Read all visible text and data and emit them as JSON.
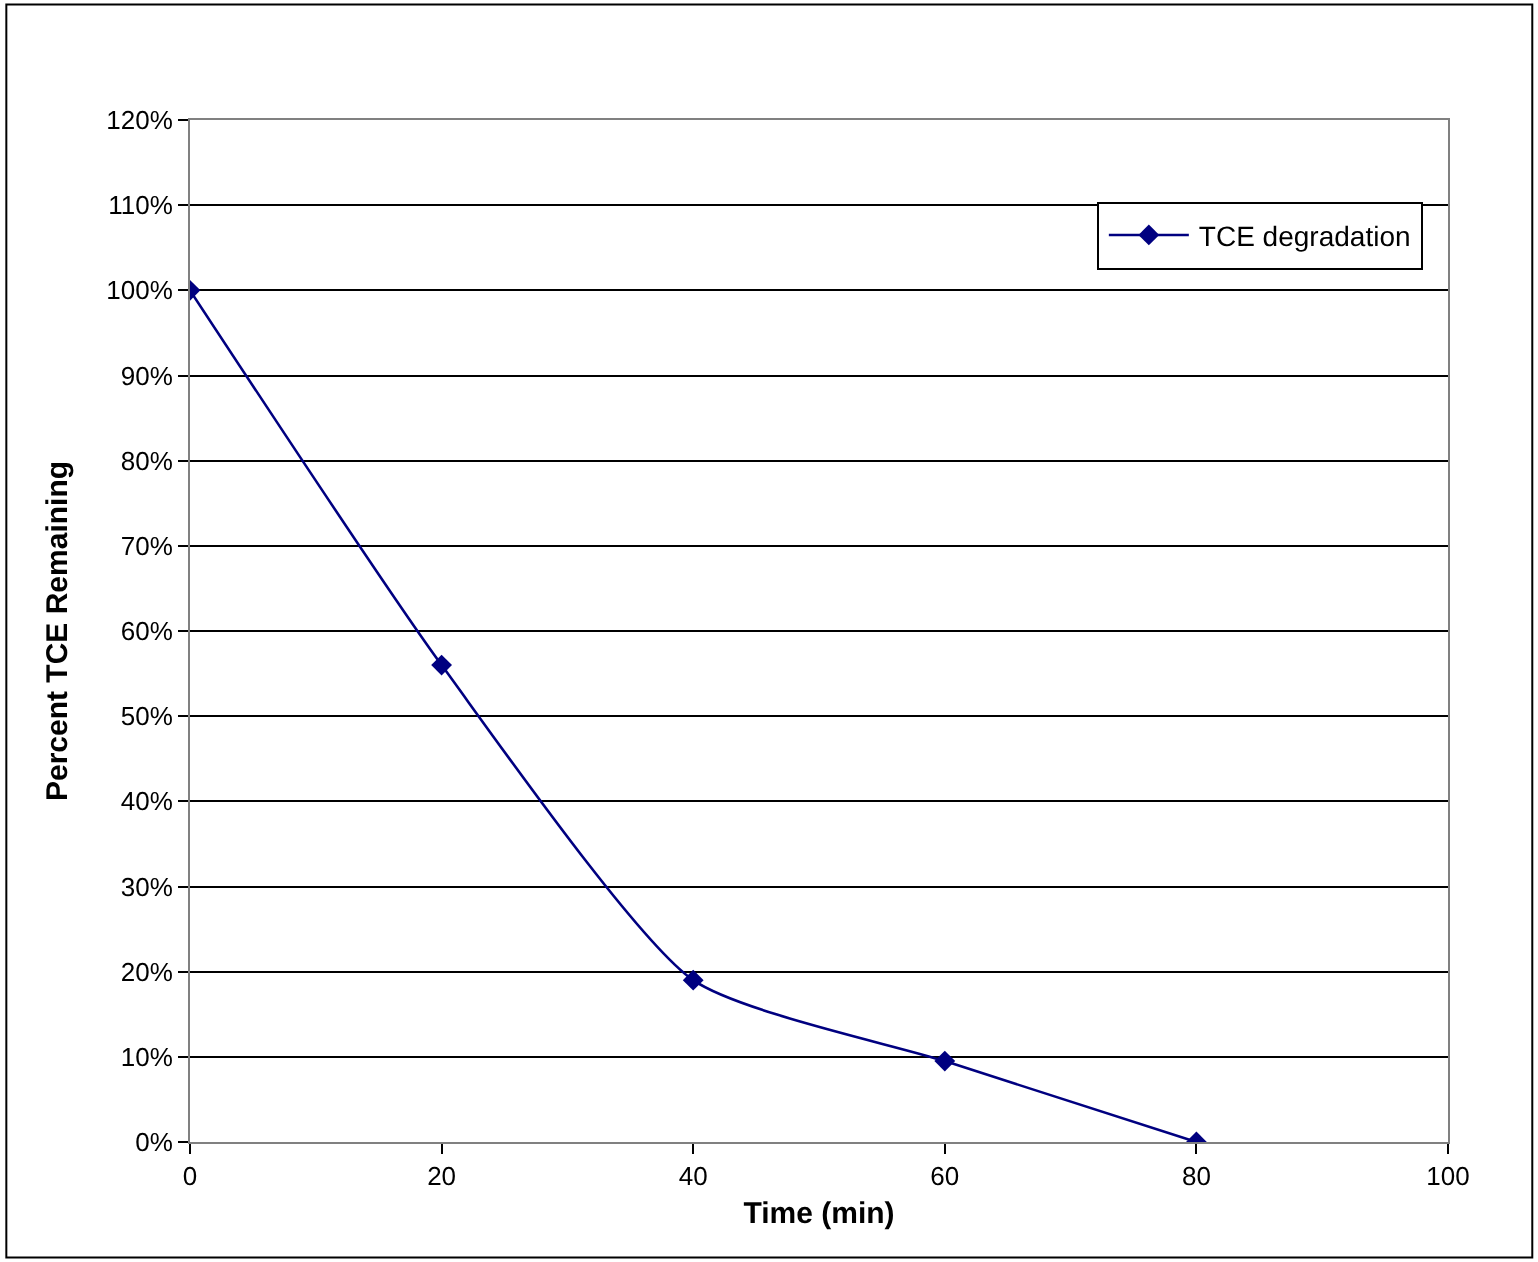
{
  "chart_data": {
    "type": "line",
    "xlabel": "Time (min)",
    "ylabel": "Percent TCE Remaining",
    "x": [
      0,
      20,
      40,
      60,
      80
    ],
    "series": [
      {
        "name": "TCE degradation",
        "color": "#000080",
        "values": [
          100,
          56,
          19,
          9.5,
          0
        ]
      }
    ],
    "xlim": [
      0,
      100
    ],
    "xticks": [
      0,
      20,
      40,
      60,
      80,
      100
    ],
    "ylim": [
      0,
      120
    ],
    "yticks": [
      {
        "value": 0,
        "label": "0%"
      },
      {
        "value": 10,
        "label": "10%"
      },
      {
        "value": 20,
        "label": "20%"
      },
      {
        "value": 30,
        "label": "30%"
      },
      {
        "value": 40,
        "label": "40%"
      },
      {
        "value": 50,
        "label": "50%"
      },
      {
        "value": 60,
        "label": "60%"
      },
      {
        "value": 70,
        "label": "70%"
      },
      {
        "value": 80,
        "label": "80%"
      },
      {
        "value": 90,
        "label": "90%"
      },
      {
        "value": 100,
        "label": "100%"
      },
      {
        "value": 110,
        "label": "110%"
      },
      {
        "value": 120,
        "label": "120%"
      }
    ],
    "grid": "y",
    "legend": "top right",
    "marker": "diamond",
    "line_style": "solid"
  }
}
